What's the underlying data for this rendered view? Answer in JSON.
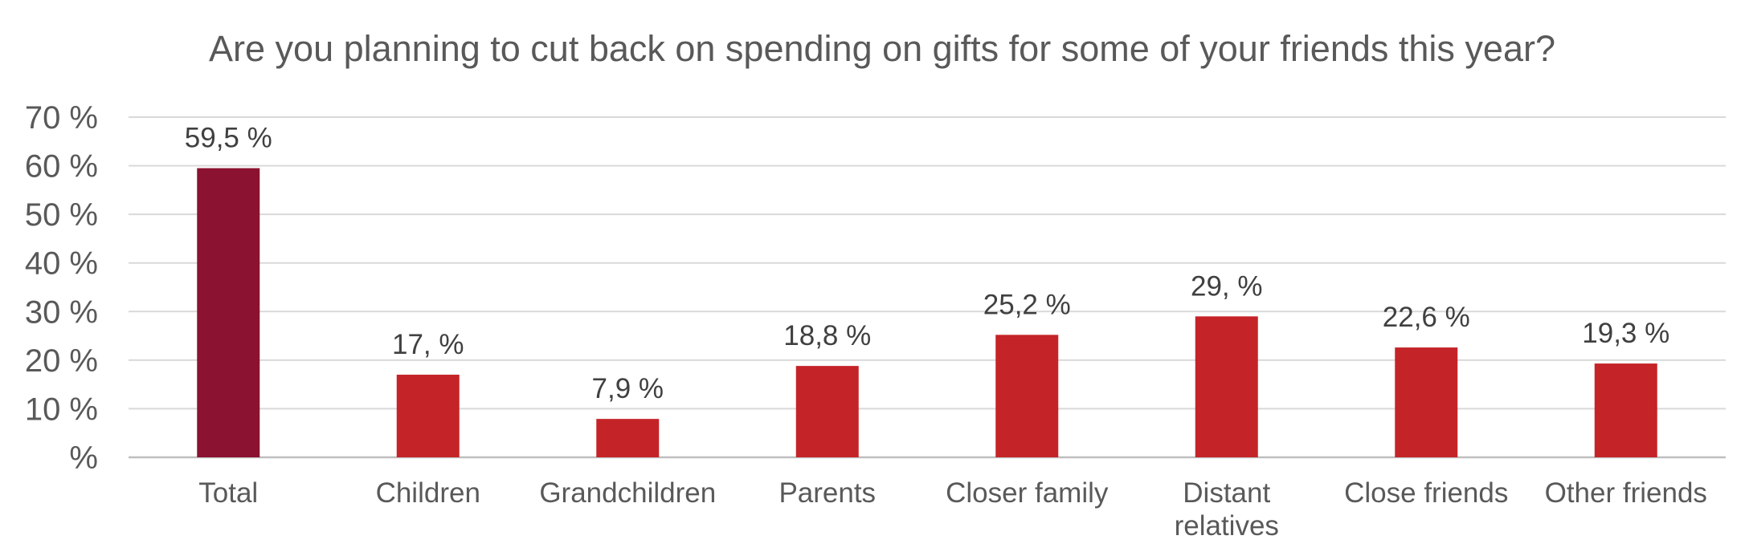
{
  "chart_data": {
    "type": "bar",
    "title": "Are you planning to cut back on spending on gifts for some of your friends this year?",
    "xlabel": "",
    "ylabel": "",
    "ylim": [
      0,
      70
    ],
    "yticks": [
      0,
      10,
      20,
      30,
      40,
      50,
      60,
      70
    ],
    "ytick_labels": [
      "%",
      "10 %",
      "20 %",
      "30 %",
      "40 %",
      "50 %",
      "60 %",
      "70 %"
    ],
    "grid": true,
    "legend": "none",
    "categories": [
      [
        "Total"
      ],
      [
        "Children"
      ],
      [
        "Grandchildren"
      ],
      [
        "Parents"
      ],
      [
        "Closer family"
      ],
      [
        "Distant",
        "relatives"
      ],
      [
        "Close friends"
      ],
      [
        "Other friends"
      ]
    ],
    "values": [
      59.5,
      17.0,
      7.9,
      18.8,
      25.2,
      29.0,
      22.6,
      19.3
    ],
    "data_labels": [
      "59,5 %",
      "17, %",
      "7,9 %",
      "18,8 %",
      "25,2 %",
      "29, %",
      "22,6 %",
      "19,3 %"
    ],
    "colors": {
      "highlight": "#8b1230",
      "bar": "#c42428"
    },
    "highlight_index": 0
  }
}
